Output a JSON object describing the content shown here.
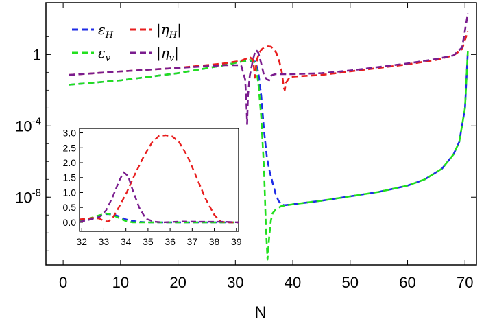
{
  "chart_data": [
    {
      "type": "line",
      "xlabel": "N",
      "ylabel": "",
      "xlim": [
        -3,
        72
      ],
      "ylim_log10": [
        -11.8,
        2.9
      ],
      "yscale": "log",
      "x_ticks": [
        0,
        10,
        20,
        30,
        40,
        50,
        60,
        70
      ],
      "x_tick_labels": [
        "0",
        "10",
        "20",
        "30",
        "40",
        "50",
        "60",
        "70"
      ],
      "y_ticks_log10": [
        0,
        -4,
        -8
      ],
      "y_tick_labels": [
        {
          "base": "1",
          "exp": ""
        },
        {
          "base": "10",
          "exp": "-4"
        },
        {
          "base": "10",
          "exp": "-8"
        }
      ],
      "legend": {
        "placement": "top-left",
        "entries": [
          {
            "series": "eps_H",
            "sym": "ε",
            "sub": "H",
            "bars": false
          },
          {
            "series": "eps_v",
            "sym": "ε",
            "sub": "v",
            "bars": false
          },
          {
            "series": "eta_H",
            "sym": "η",
            "sub": "H",
            "bars": true
          },
          {
            "series": "eta_v",
            "sym": "η",
            "sub": "v",
            "bars": true
          }
        ]
      },
      "series": [
        {
          "id": "eps_H",
          "color": "#1e2be6",
          "x": [
            1,
            10,
            20,
            28,
            31,
            32.5,
            33.5,
            34,
            34.5,
            35,
            35.5,
            36,
            36.5,
            37,
            37.5,
            38,
            38.5,
            40,
            45,
            50,
            55,
            60,
            63,
            66,
            68,
            69,
            70,
            70.5
          ],
          "log10y": [
            -1.7,
            -1.45,
            -1.05,
            -0.6,
            -0.4,
            -0.35,
            -0.4,
            -1.0,
            -2.3,
            -4.3,
            -5.8,
            -6.6,
            -7.2,
            -7.8,
            -8.2,
            -8.4,
            -8.45,
            -8.4,
            -8.2,
            -7.95,
            -7.7,
            -7.35,
            -7.0,
            -6.4,
            -5.6,
            -4.9,
            -3.0,
            0.2
          ]
        },
        {
          "id": "eps_v",
          "color": "#22e01e",
          "x": [
            1,
            10,
            20,
            28,
            31,
            32.5,
            33.5,
            34,
            34.5,
            35,
            35.3,
            35.6,
            35.9,
            36.2,
            36.5,
            37,
            38,
            40,
            45,
            50,
            55,
            60,
            63,
            66,
            68,
            69,
            70,
            70.5
          ],
          "log10y": [
            -1.7,
            -1.45,
            -1.05,
            -0.6,
            -0.4,
            -0.3,
            -0.45,
            -1.6,
            -3.5,
            -6.5,
            -9.5,
            -11.5,
            -10.2,
            -9.3,
            -8.9,
            -8.7,
            -8.5,
            -8.4,
            -8.2,
            -7.95,
            -7.7,
            -7.35,
            -7.0,
            -6.4,
            -5.6,
            -4.9,
            -3.0,
            0.2
          ]
        },
        {
          "id": "eta_H",
          "color": "#e81e1e",
          "x": [
            1,
            10,
            20,
            28,
            31,
            32.5,
            33.1,
            33.4,
            33.6,
            33.8,
            34.2,
            34.7,
            35.2,
            35.7,
            36.2,
            36.7,
            37.2,
            37.7,
            38.1,
            38.4,
            38.6,
            38.8,
            39.5,
            45,
            50,
            55,
            60,
            65,
            68,
            69.5,
            70.5
          ],
          "log10y": [
            -1.15,
            -0.95,
            -0.75,
            -0.5,
            -0.35,
            -0.15,
            -0.3,
            -1.3,
            -0.7,
            -0.25,
            0.12,
            0.32,
            0.42,
            0.46,
            0.44,
            0.3,
            0.05,
            -0.45,
            -1.0,
            -1.8,
            -2.0,
            -1.6,
            -1.25,
            -1.15,
            -0.95,
            -0.75,
            -0.55,
            -0.3,
            -0.05,
            0.3,
            1.3
          ]
        },
        {
          "id": "eta_v",
          "color": "#7a1c8e",
          "x": [
            1,
            10,
            20,
            28,
            31,
            31.7,
            31.9,
            32.05,
            32.2,
            32.5,
            33,
            33.3,
            33.6,
            34,
            34.5,
            35,
            35.5,
            35.9,
            36.2,
            36.5,
            37,
            38,
            40,
            45,
            50,
            55,
            60,
            65,
            68,
            69.5,
            70.5
          ],
          "log10y": [
            -1.15,
            -0.95,
            -0.75,
            -0.6,
            -0.6,
            -1.4,
            -2.5,
            -3.9,
            -2.3,
            -1.2,
            -0.4,
            0.0,
            0.25,
            0.1,
            -0.5,
            -1.2,
            -1.4,
            -1.45,
            -1.2,
            -1.15,
            -1.1,
            -1.1,
            -1.1,
            -1.05,
            -0.9,
            -0.7,
            -0.5,
            -0.25,
            -0.05,
            0.4,
            2.3
          ]
        }
      ]
    },
    {
      "type": "line",
      "xlabel": "",
      "ylabel": "",
      "xlim": [
        31.9,
        39.1
      ],
      "ylim": [
        -0.3,
        3.15
      ],
      "yscale": "linear",
      "x_ticks": [
        32,
        33,
        34,
        35,
        36,
        37,
        38,
        39
      ],
      "x_tick_labels": [
        "32",
        "33",
        "34",
        "35",
        "36",
        "37",
        "38",
        "39"
      ],
      "y_ticks": [
        0,
        0.5,
        1,
        1.5,
        2,
        2.5,
        3
      ],
      "y_tick_labels": [
        "0.0",
        "0.5",
        "1.0",
        "1.5",
        "2.0",
        "2.5",
        "3.0"
      ],
      "series": [
        {
          "id": "eps_H",
          "color": "#1e2be6",
          "x": [
            31.9,
            32.3,
            32.7,
            33.1,
            33.4,
            33.7,
            34.0,
            34.3,
            34.6,
            35.0,
            39.1
          ],
          "y": [
            0.06,
            0.1,
            0.18,
            0.28,
            0.27,
            0.2,
            0.1,
            0.05,
            0.02,
            0.0,
            0.0
          ]
        },
        {
          "id": "eps_v",
          "color": "#22e01e",
          "x": [
            31.9,
            32.3,
            32.7,
            33.1,
            33.4,
            33.7,
            34.0,
            34.3,
            35.0,
            39.1
          ],
          "y": [
            0.06,
            0.12,
            0.22,
            0.3,
            0.25,
            0.14,
            0.04,
            0.0,
            0.0,
            0.0
          ]
        },
        {
          "id": "eta_H",
          "color": "#e81e1e",
          "x": [
            31.9,
            32.2,
            32.5,
            32.8,
            33.0,
            33.2,
            33.4,
            33.6,
            34.0,
            34.4,
            34.8,
            35.2,
            35.5,
            35.8,
            36.1,
            36.4,
            36.8,
            37.2,
            37.6,
            38.0,
            38.3,
            38.7,
            39.1
          ],
          "y": [
            0.1,
            0.12,
            0.15,
            0.13,
            0.05,
            0.03,
            0.15,
            0.4,
            0.95,
            1.6,
            2.2,
            2.7,
            2.9,
            2.92,
            2.88,
            2.7,
            2.2,
            1.5,
            0.8,
            0.25,
            0.02,
            0.0,
            0.0
          ]
        },
        {
          "id": "eta_v",
          "color": "#7a1c8e",
          "x": [
            31.9,
            32.1,
            32.3,
            32.5,
            32.8,
            33.1,
            33.4,
            33.7,
            33.9,
            34.1,
            34.3,
            34.6,
            34.9,
            35.3,
            35.7,
            36.5,
            37.5,
            38.5,
            39.1
          ],
          "y": [
            0.02,
            0.05,
            0.08,
            0.12,
            0.18,
            0.4,
            0.85,
            1.4,
            1.68,
            1.55,
            1.1,
            0.5,
            0.12,
            0.02,
            0.0,
            0.03,
            0.02,
            0.02,
            0.0
          ]
        }
      ]
    }
  ]
}
